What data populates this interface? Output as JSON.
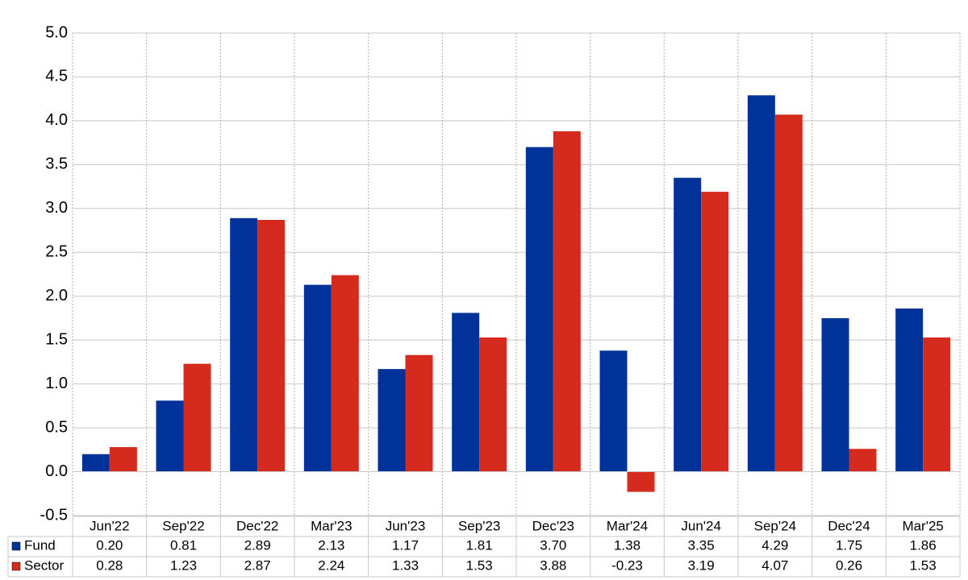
{
  "chart_data": {
    "type": "bar",
    "categories": [
      "Jun'22",
      "Sep'22",
      "Dec'22",
      "Mar'23",
      "Jun'23",
      "Sep'23",
      "Dec'23",
      "Mar'24",
      "Jun'24",
      "Sep'24",
      "Dec'24",
      "Mar'25"
    ],
    "series": [
      {
        "name": "Fund",
        "color": "#003299",
        "values": [
          0.2,
          0.81,
          2.89,
          2.13,
          1.17,
          1.81,
          3.7,
          1.38,
          3.35,
          4.29,
          1.75,
          1.86
        ],
        "value_labels": [
          "0.20",
          "0.81",
          "2.89",
          "2.13",
          "1.17",
          "1.81",
          "3.70",
          "1.38",
          "3.35",
          "4.29",
          "1.75",
          "1.86"
        ]
      },
      {
        "name": "Sector",
        "color": "#d52a1e",
        "values": [
          0.28,
          1.23,
          2.87,
          2.24,
          1.33,
          1.53,
          3.88,
          -0.23,
          3.19,
          4.07,
          0.26,
          1.53
        ],
        "value_labels": [
          "0.28",
          "1.23",
          "2.87",
          "2.24",
          "1.33",
          "1.53",
          "3.88",
          "-0.23",
          "3.19",
          "4.07",
          "0.26",
          "1.53"
        ]
      }
    ],
    "ylim": [
      -0.5,
      5
    ],
    "yticks": [
      {
        "value": -0.5,
        "label": "-0.5"
      },
      {
        "value": 0,
        "label": "0.0"
      },
      {
        "value": 0.5,
        "label": "0.5"
      },
      {
        "value": 1,
        "label": "1.0"
      },
      {
        "value": 1.5,
        "label": "1.5"
      },
      {
        "value": 2,
        "label": "2.0"
      },
      {
        "value": 2.5,
        "label": "2.5"
      },
      {
        "value": 3,
        "label": "3.0"
      },
      {
        "value": 3.5,
        "label": "3.5"
      },
      {
        "value": 4,
        "label": "4.0"
      },
      {
        "value": 4.5,
        "label": "4.5"
      },
      {
        "value": 5,
        "label": "5.0"
      }
    ],
    "grid": true
  }
}
